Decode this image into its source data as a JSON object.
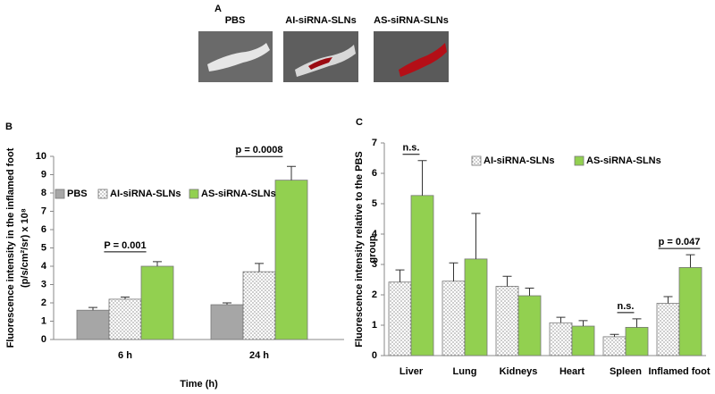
{
  "panel_a": {
    "label": "A",
    "images": [
      "PBS",
      "AI-siRNA-SLNs",
      "AS-siRNA-SLNs"
    ]
  },
  "chart_data": [
    {
      "type": "bar",
      "panel_label": "B",
      "ylabel": [
        "Fluorescence intensity in the inflamed foot",
        "(p/s/cm²/sr) x 10⁸"
      ],
      "xlabel": "Time (h)",
      "categories": [
        "6 h",
        "24 h"
      ],
      "series": [
        {
          "name": "PBS",
          "color": "#a6a6a6",
          "values": [
            1.6,
            1.9
          ],
          "errors": [
            0.15,
            0.1
          ]
        },
        {
          "name": "AI-siRNA-SLNs",
          "color": "#ffffff",
          "fill_pattern": "dotted",
          "values": [
            2.2,
            3.7
          ],
          "errors": [
            0.12,
            0.45
          ]
        },
        {
          "name": "AS-siRNA-SLNs",
          "color": "#92d050",
          "values": [
            4.0,
            8.7
          ],
          "errors": [
            0.25,
            0.75
          ]
        }
      ],
      "annotations": [
        "P = 0.001",
        "p = 0.0008"
      ],
      "ylim": [
        0,
        10
      ],
      "yticks": [
        0,
        1,
        2,
        3,
        4,
        5,
        6,
        7,
        8,
        9,
        10
      ],
      "legend": "upper left"
    },
    {
      "type": "bar",
      "panel_label": "C",
      "ylabel": [
        "Fluorescence intensity relative to the PBS",
        "group"
      ],
      "categories": [
        "Liver",
        "Lung",
        "Kidneys",
        "Heart",
        "Spleen",
        "Inflamed foot"
      ],
      "series": [
        {
          "name": "AI-siRNA-SLNs",
          "color": "#ffffff",
          "fill_pattern": "dotted",
          "values": [
            2.42,
            2.45,
            2.28,
            1.08,
            0.62,
            1.72
          ],
          "errors": [
            0.4,
            0.6,
            0.33,
            0.18,
            0.08,
            0.22
          ]
        },
        {
          "name": "AS-siRNA-SLNs",
          "color": "#92d050",
          "values": [
            5.27,
            3.18,
            1.97,
            0.97,
            0.93,
            2.9
          ],
          "errors": [
            1.15,
            1.5,
            0.25,
            0.18,
            0.28,
            0.42
          ]
        }
      ],
      "annotations": [
        "n.s.",
        "n.s.",
        "p = 0.047"
      ],
      "ylim": [
        0,
        7
      ],
      "yticks": [
        0,
        1,
        2,
        3,
        4,
        5,
        6,
        7
      ],
      "legend": "upper center"
    }
  ]
}
